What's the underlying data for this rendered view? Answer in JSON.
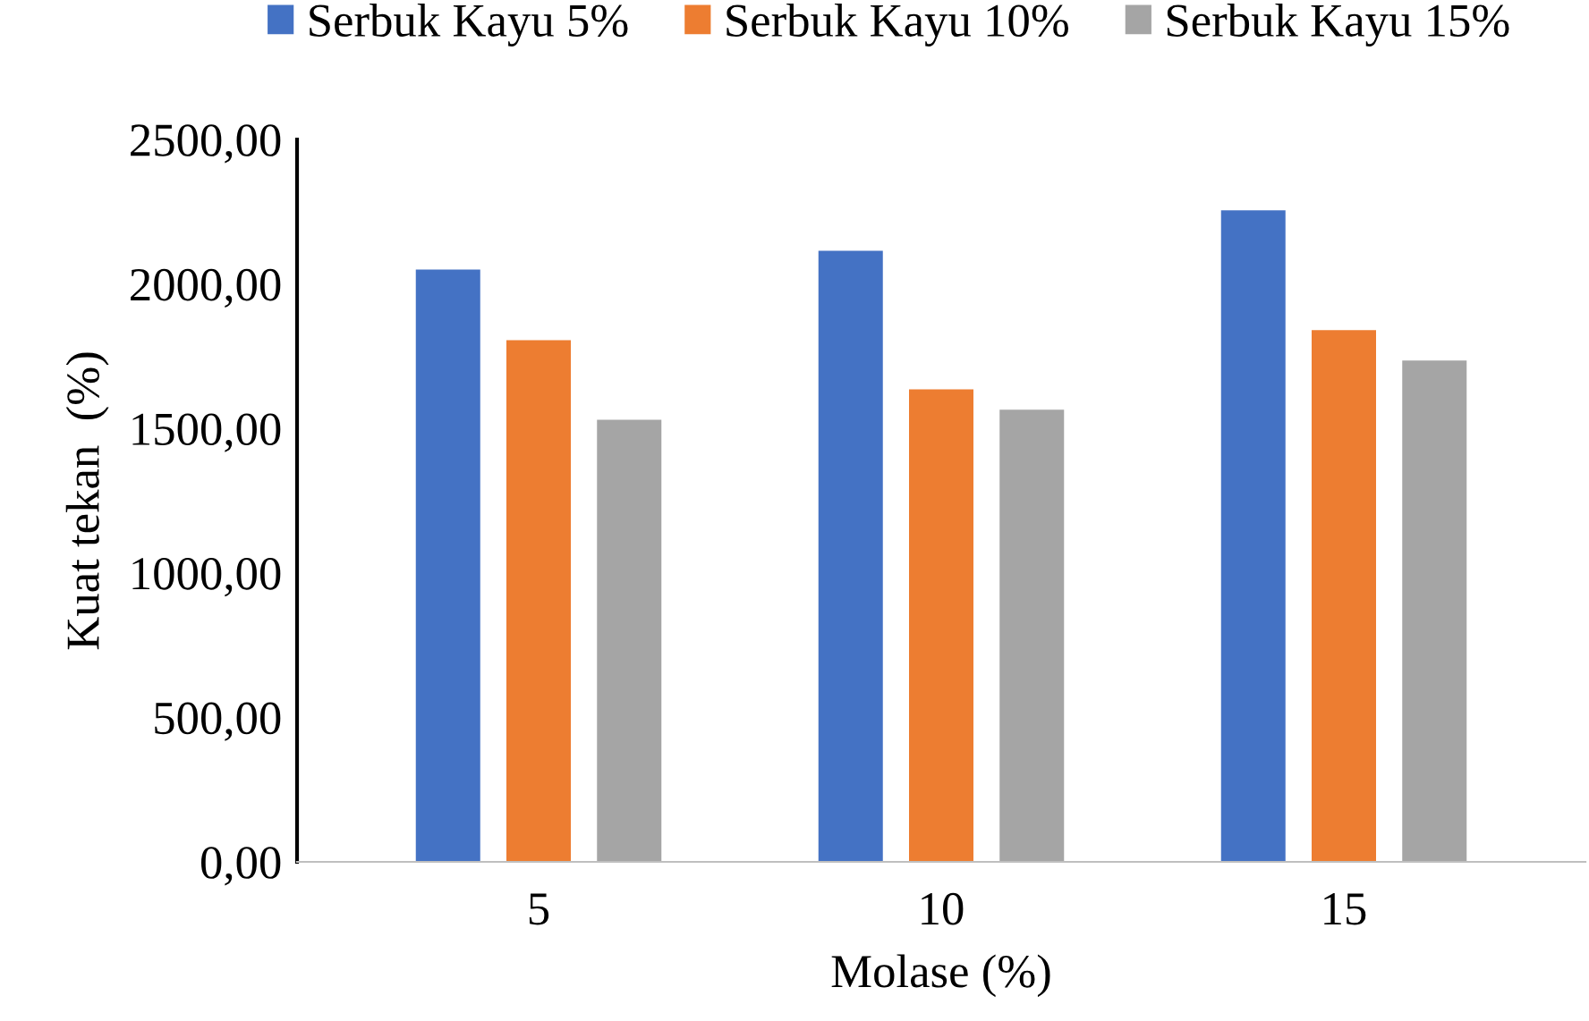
{
  "chart_data": {
    "type": "bar",
    "xlabel": "Molase (%)",
    "ylabel": "Kuat tekan  (%)",
    "categories": [
      "5",
      "10",
      "15"
    ],
    "series": [
      {
        "name": "Serbuk Kayu 5%",
        "color": "#4472c4",
        "values": [
          2050,
          2115,
          2255
        ]
      },
      {
        "name": "Serbuk Kayu 10%",
        "color": "#ed7d31",
        "values": [
          1805,
          1635,
          1840
        ]
      },
      {
        "name": "Serbuk Kayu 15%",
        "color": "#a5a5a5",
        "values": [
          1530,
          1565,
          1735
        ]
      }
    ],
    "ylim": [
      0,
      2500
    ],
    "yticks": [
      {
        "value": 0,
        "label": "0,00"
      },
      {
        "value": 500,
        "label": "500,00"
      },
      {
        "value": 1000,
        "label": "1000,00"
      },
      {
        "value": 1500,
        "label": "1500,00"
      },
      {
        "value": 2000,
        "label": "2000,00"
      },
      {
        "value": 2500,
        "label": "2500,00"
      }
    ],
    "legend": "top",
    "grid": false
  }
}
